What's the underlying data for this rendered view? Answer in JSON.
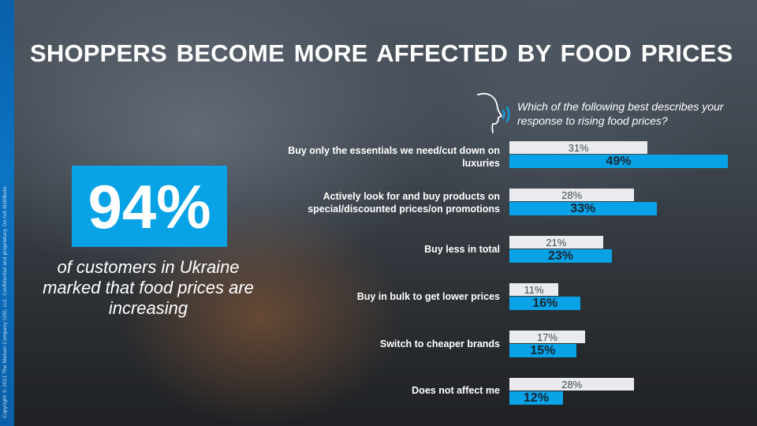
{
  "title": "SHOPPERS  BECOME MORE AFFECTED BY FOOD PRICES",
  "copyright": "Copyright © 2021 The Nielsen Company (US), LLC. Confidential and proprietary. Do not distribute.",
  "kpi": {
    "value": "94%",
    "caption": "of customers in Ukraine marked that food prices are increasing"
  },
  "question": "Which of the following  best describes your response to rising food prices?",
  "icons": {
    "question_icon": "head-speaking-icon"
  },
  "colors": {
    "accent": "#08a2e6",
    "previous": "#e9ebef",
    "side_strip": "#0b74c4"
  },
  "chart_data": {
    "type": "bar",
    "orientation": "horizontal",
    "categories": [
      "Buy only the essentials we need/cut down on luxuries",
      "Actively look for and buy products on special/discounted prices/on promotions",
      "Buy less in total",
      "Buy in bulk to get lower prices",
      "Switch to cheaper brands",
      "Does not affect me"
    ],
    "series": [
      {
        "color": "#e9ebef",
        "values": [
          31,
          28,
          21,
          11,
          17,
          28
        ]
      },
      {
        "color": "#08a2e6",
        "values": [
          49,
          33,
          23,
          16,
          15,
          12
        ]
      }
    ],
    "value_suffix": "%",
    "xlim": [
      0,
      50
    ],
    "grid": false
  }
}
